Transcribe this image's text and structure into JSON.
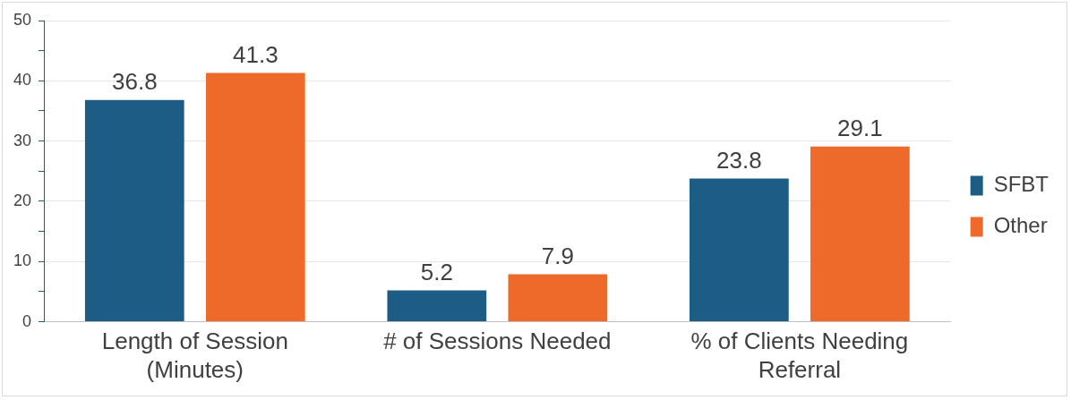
{
  "chart_data": {
    "type": "bar",
    "categories": [
      "Length of Session (Minutes)",
      "# of Sessions Needed",
      "% of Clients Needing Referral"
    ],
    "series": [
      {
        "name": "SFBT",
        "color": "#1d5c84",
        "values": [
          36.8,
          5.2,
          23.8
        ]
      },
      {
        "name": "Other",
        "color": "#ee6a2a",
        "values": [
          41.3,
          7.9,
          29.1
        ]
      }
    ],
    "ylim": [
      0,
      50
    ],
    "yticks": [
      0,
      {
        "value": 5,
        "label": null
      },
      10,
      {
        "value": 15,
        "label": null
      },
      20,
      {
        "value": 25,
        "label": null
      },
      30,
      {
        "value": 35,
        "label": null
      },
      40,
      {
        "value": 45,
        "label": null
      },
      50
    ],
    "grid": "y",
    "legend": "right",
    "data_labels": true
  }
}
